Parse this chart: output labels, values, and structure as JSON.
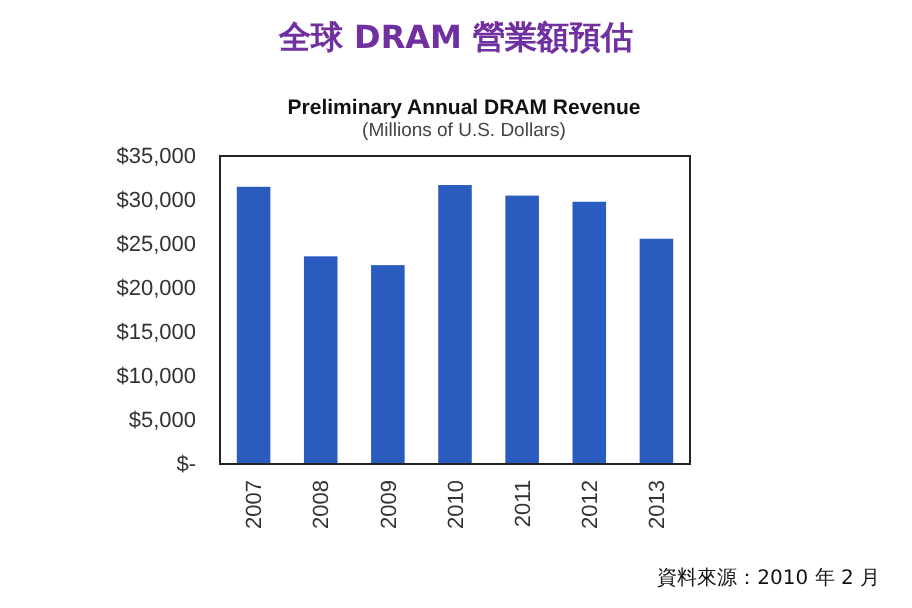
{
  "chart_data": {
    "type": "bar",
    "title": "全球 DRAM 營業額預估",
    "subtitle": "Preliminary Annual DRAM Revenue",
    "ylabel": "(Millions of U.S. Dollars)",
    "categories": [
      "2007",
      "2008",
      "2009",
      "2010",
      "2011",
      "2012",
      "2013"
    ],
    "values": [
      31500,
      23600,
      22600,
      31700,
      30500,
      29800,
      25600
    ],
    "color": "#2a5cbf",
    "ylim": [
      0,
      35000
    ],
    "yticks": [
      {
        "value": 0,
        "label": "$-"
      },
      {
        "value": 5000,
        "label": "$5,000"
      },
      {
        "value": 10000,
        "label": "$10,000"
      },
      {
        "value": 15000,
        "label": "$15,000"
      },
      {
        "value": 20000,
        "label": "$20,000"
      },
      {
        "value": 25000,
        "label": "$25,000"
      },
      {
        "value": 30000,
        "label": "$30,000"
      },
      {
        "value": 35000,
        "label": "$35,000"
      }
    ],
    "grid": false,
    "annotations": [
      "資料來源：2010 年 2 月"
    ]
  }
}
